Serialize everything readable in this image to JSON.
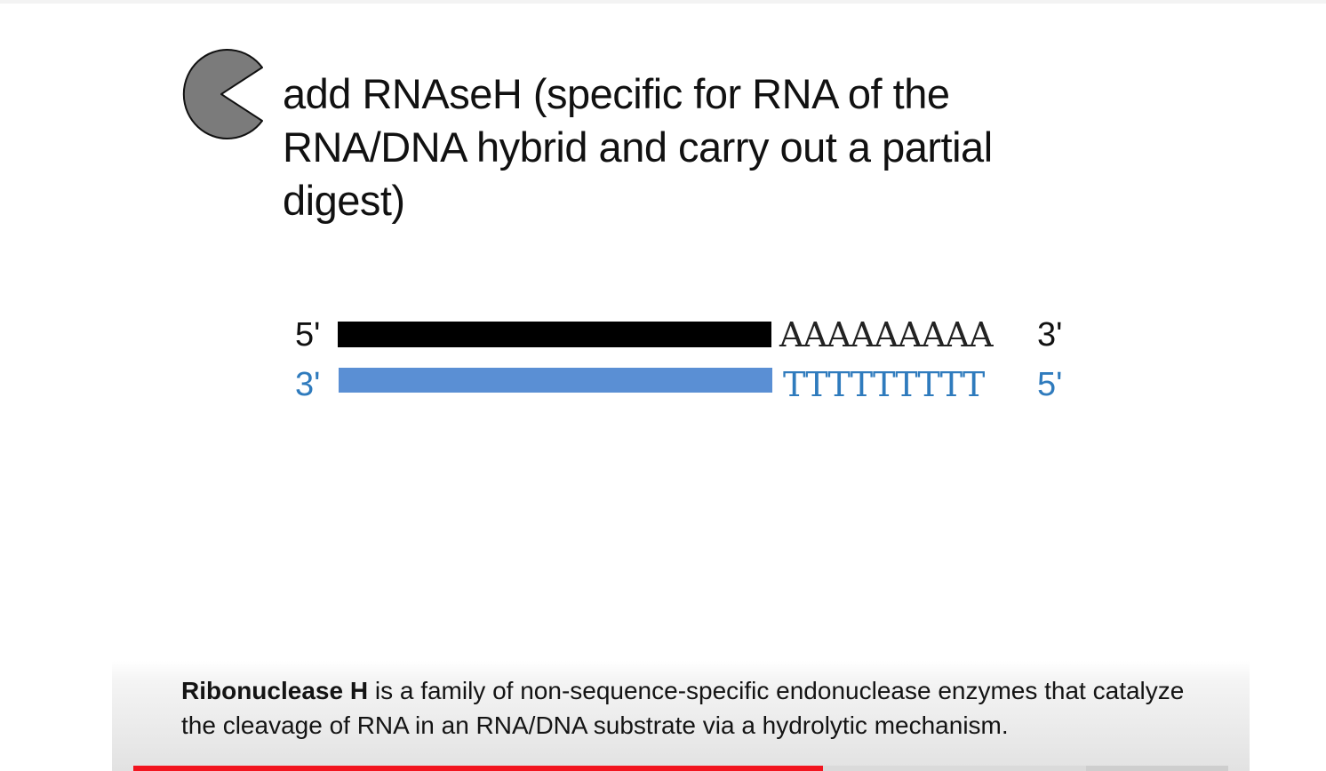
{
  "slide": {
    "heading_lines": [
      "add RNAseH (specific for RNA of the",
      "RNA/DNA hybrid and carry out a partial",
      "digest)"
    ],
    "enzyme_icon": "pacman-icon",
    "colors": {
      "enzyme_fill": "#7b7b7b",
      "mrna_strand": "#000000",
      "cdna_strand": "#5a8fd4",
      "cdna_text": "#2f7bbd"
    },
    "diagram": {
      "top_strand": {
        "left_end": "5'",
        "tail": "AAAAAAAAA",
        "right_end": "3'"
      },
      "bottom_strand": {
        "left_end": "3'",
        "tail": "TTTTTTTTT",
        "right_end": "5'"
      }
    }
  },
  "caption": {
    "term": "Ribonuclease H",
    "text": " is a family of non-sequence-specific endonuclease enzymes that catalyze the cleavage of RNA in an RNA/DNA substrate via a hydrolytic mechanism."
  },
  "player": {
    "progress_fraction": 0.63,
    "buffered_fraction": 0.87,
    "progress_color": "#f2151f"
  }
}
